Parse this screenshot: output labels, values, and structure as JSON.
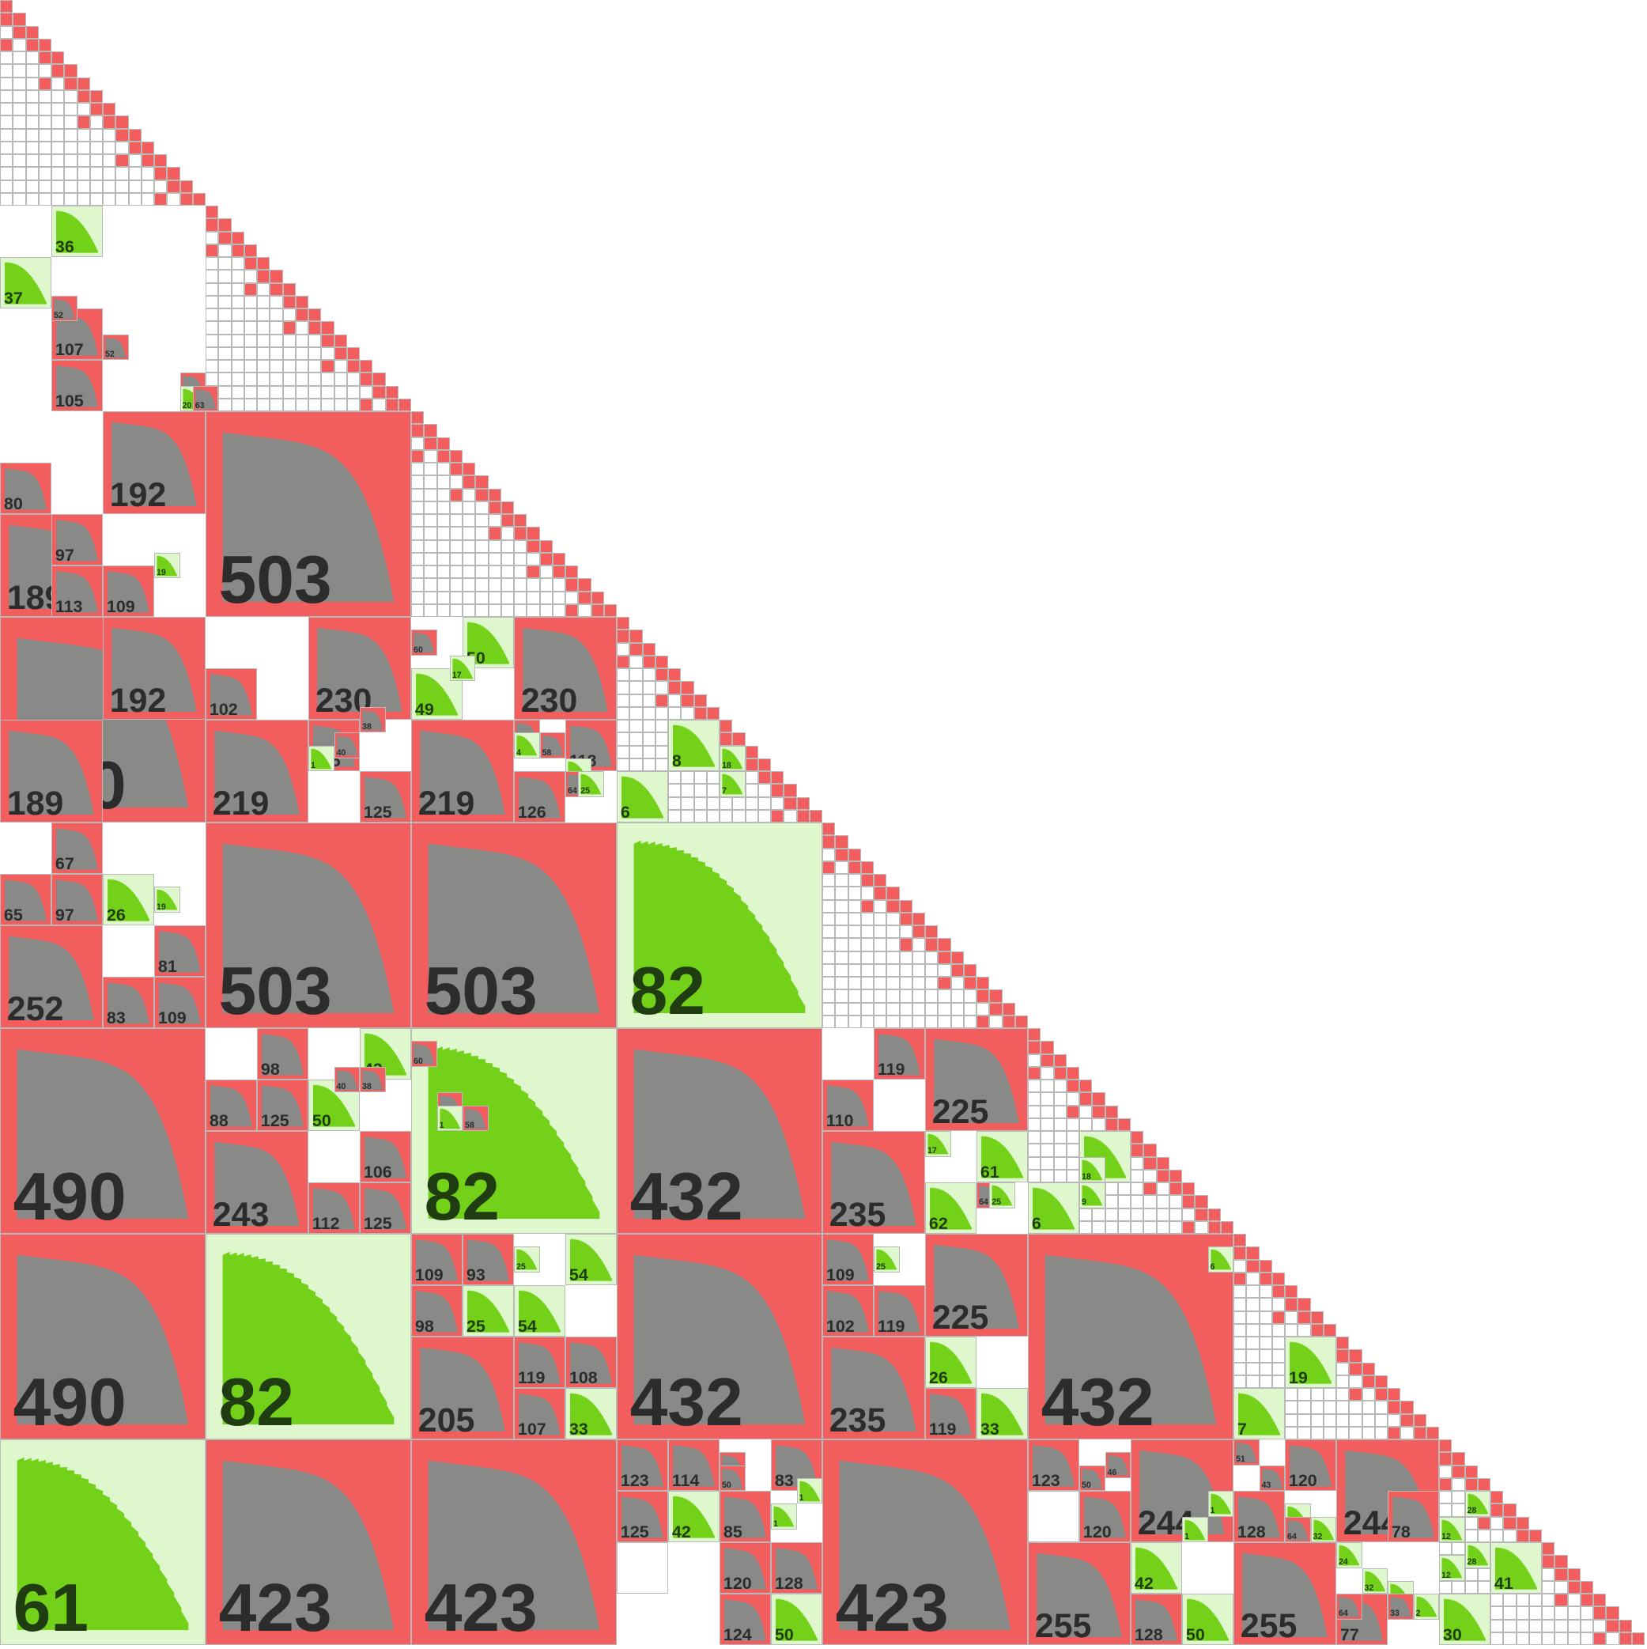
{
  "diagram": {
    "colors": {
      "admissible": "#f25d5d",
      "low_rank_block": "#898987",
      "dense": "#73d119",
      "dense_background": "#def7cd",
      "empty": "#ffffff",
      "grid": "#b9b9b9"
    },
    "labels": {
      "b00": "61",
      "b01": "423",
      "b02": "423",
      "b04": "423",
      "b05": "255",
      "b06": "255",
      "b10": "490",
      "b11": "82",
      "b12": "432",
      "b13": "432",
      "b14": "432",
      "b20": "490",
      "b21": "82",
      "b22": "490",
      "b23": "503",
      "b24": "503",
      "b25": "82",
      "b30": "503",
      "b31": "503",
      "b40": "192",
      "b41": "189",
      "b42": "192",
      "b43": "189",
      "b50": "230",
      "b51": "219",
      "b52": "219",
      "b53": "230",
      "b54": "252",
      "b55": "243",
      "b56": "235",
      "b57": "225",
      "b58": "235",
      "b59": "225",
      "b60": "244",
      "b61": "244",
      "b62": "205",
      "s01": "37",
      "s02": "36",
      "s03": "52",
      "s04": "107",
      "s05": "105",
      "s06": "52",
      "s07": "60",
      "s08": "20",
      "s09": "63",
      "s10": "80",
      "s11": "97",
      "s12": "113",
      "s13": "109",
      "s14": "19",
      "s15": "102",
      "s16": "125",
      "s17": "1",
      "s18": "125",
      "s19": "40",
      "s20": "38",
      "s21": "60",
      "s22": "50",
      "s23": "49",
      "s24": "17",
      "s25": "61",
      "s26": "4",
      "s27": "58",
      "s28": "118",
      "s29": "126",
      "s30": "19",
      "s31": "64",
      "s32": "25",
      "s33": "6",
      "s34": "8",
      "s35": "6",
      "s36": "18",
      "s37": "7",
      "s38": "67",
      "s39": "65",
      "s40": "97",
      "s41": "26",
      "s42": "19",
      "s43": "81",
      "s44": "83",
      "s45": "109",
      "s46": "98",
      "s47": "43",
      "s48": "88",
      "s49": "125",
      "s50": "50",
      "s51": "40",
      "s52": "38",
      "s53": "106",
      "s54": "112",
      "s55": "125",
      "s56": "60",
      "s57": "119",
      "s58": "110",
      "s59": "61",
      "s60": "1",
      "s61": "58",
      "s62": "17",
      "s63": "61",
      "s64": "5",
      "s65": "62",
      "s66": "19",
      "s67": "64",
      "s68": "25",
      "s69": "6",
      "s70": "18",
      "s71": "9",
      "s72": "109",
      "s73": "93",
      "s74": "25",
      "s75": "54",
      "s76": "98",
      "s77": "25",
      "s78": "54",
      "s79": "119",
      "s80": "108",
      "s81": "107",
      "s82": "33",
      "s83": "109",
      "s84": "25",
      "s85": "102",
      "s86": "119",
      "s87": "26",
      "s88": "119",
      "s89": "33",
      "s90": "6",
      "s91": "19",
      "s92": "7",
      "s93": "123",
      "s94": "114",
      "s95": "46",
      "s96": "83",
      "s97": "50",
      "s98": "125",
      "s99": "42",
      "t00": "85",
      "t01": "1",
      "t02": "1",
      "t03": "120",
      "t04": "128",
      "t05": "124",
      "t06": "50",
      "t07": "123",
      "t08": "46",
      "t09": "50",
      "t10": "120",
      "t11": "42",
      "t12": "1",
      "t13": "1",
      "t14": "128",
      "t15": "50",
      "t16": "51",
      "t17": "43",
      "t18": "120",
      "t19": "128",
      "t20": "24",
      "t21": "64",
      "t22": "32",
      "t23": "24",
      "t24": "78",
      "t25": "32",
      "t26": "64",
      "t27": "77",
      "t28": "1",
      "t29": "33",
      "t30": "2",
      "t31": "28",
      "t32": "12",
      "t33": "12",
      "t34": "28",
      "t35": "41",
      "t36": "30"
    }
  }
}
